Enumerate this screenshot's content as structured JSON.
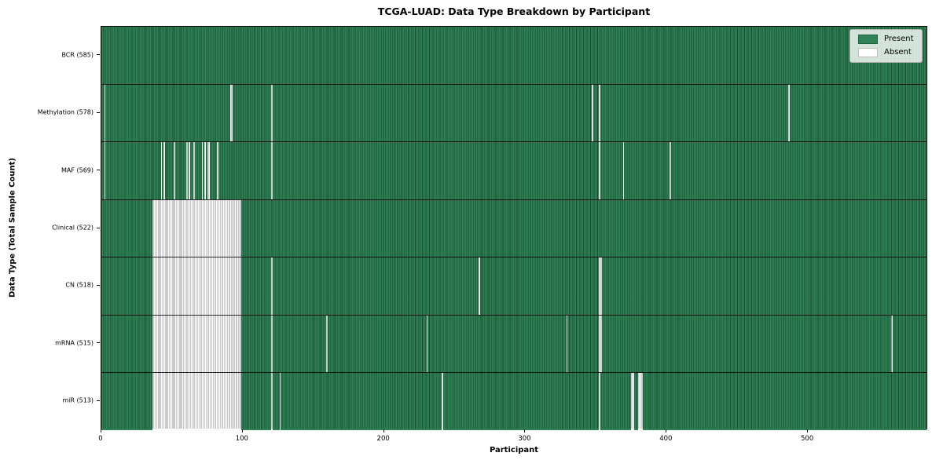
{
  "chart_data": {
    "type": "heatmap",
    "title": "TCGA-LUAD: Data Type Breakdown by Participant",
    "xlabel": "Participant",
    "ylabel": "Data Type (Total Sample Count)",
    "x_ticks": [
      0,
      100,
      200,
      300,
      400,
      500
    ],
    "xlim": [
      0,
      585
    ],
    "n_participants": 585,
    "grid": "row-separators",
    "colors": {
      "present": "#2e8255",
      "absent": "#ffffff",
      "cell_edge": "rgba(0,0,0,0.42)",
      "separator": "#000000",
      "legend_border": "#b0b0b0"
    },
    "legend": {
      "position": "upper right",
      "entries": [
        {
          "label": "Present",
          "color": "#2e8255"
        },
        {
          "label": "Absent",
          "color": "#ffffff"
        }
      ]
    },
    "rows": [
      {
        "label": "BCR (585)",
        "name": "BCR",
        "total": 585,
        "absent_ranges": []
      },
      {
        "label": "Methylation (578)",
        "name": "Methylation",
        "total": 578,
        "absent_ranges": [
          [
            2,
            1
          ],
          [
            91,
            2
          ],
          [
            120,
            1
          ],
          [
            347,
            1
          ],
          [
            352,
            1
          ],
          [
            486,
            1
          ]
        ]
      },
      {
        "label": "MAF (569)",
        "name": "MAF",
        "total": 569,
        "absent_ranges": [
          [
            2,
            1
          ],
          [
            42,
            1
          ],
          [
            44,
            1
          ],
          [
            51,
            1
          ],
          [
            60,
            1
          ],
          [
            62,
            1
          ],
          [
            65,
            1
          ],
          [
            71,
            1
          ],
          [
            73,
            1
          ],
          [
            75,
            2
          ],
          [
            82,
            1
          ],
          [
            120,
            1
          ],
          [
            352,
            1
          ],
          [
            369,
            1
          ],
          [
            402,
            1
          ]
        ]
      },
      {
        "label": "Clinical (522)",
        "name": "Clinical",
        "total": 522,
        "absent_ranges": [
          [
            36,
            63
          ]
        ]
      },
      {
        "label": "CN (518)",
        "name": "CN",
        "total": 518,
        "absent_ranges": [
          [
            36,
            63
          ],
          [
            120,
            1
          ],
          [
            267,
            1
          ],
          [
            352,
            2
          ]
        ]
      },
      {
        "label": "mRNA (515)",
        "name": "mRNA",
        "total": 515,
        "absent_ranges": [
          [
            36,
            63
          ],
          [
            120,
            1
          ],
          [
            159,
            1
          ],
          [
            230,
            1
          ],
          [
            329,
            1
          ],
          [
            352,
            2
          ],
          [
            559,
            1
          ]
        ]
      },
      {
        "label": "miR (513)",
        "name": "miR",
        "total": 513,
        "absent_ranges": [
          [
            36,
            63
          ],
          [
            120,
            1
          ],
          [
            126,
            1
          ],
          [
            241,
            1
          ],
          [
            352,
            1
          ],
          [
            375,
            2
          ],
          [
            380,
            3
          ]
        ]
      }
    ]
  }
}
